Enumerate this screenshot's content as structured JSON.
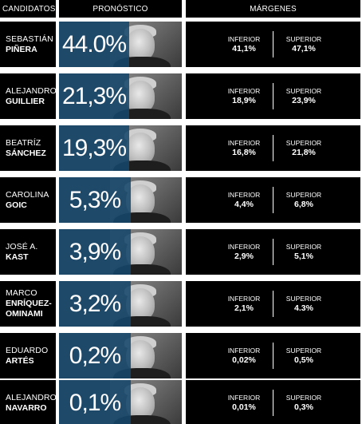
{
  "headers": {
    "candidates": "CANDIDATOS",
    "forecast": "PRONÓSTICO",
    "margins": "MÁRGENES"
  },
  "labels": {
    "lower": "INFERIOR",
    "upper": "SUPERIOR"
  },
  "colors": {
    "forecast_fill": "#17476b",
    "panel": "#000000"
  },
  "candidates": [
    {
      "first": "SEBASTIÁN",
      "last": "PIÑERA",
      "forecast": "44.0%",
      "lower": "41,1%",
      "upper": "47,1%",
      "icon": "candidate-photo"
    },
    {
      "first": "ALEJANDRO",
      "last": "GUILLIER",
      "forecast": "21,3%",
      "lower": "18,9%",
      "upper": "23,9%",
      "icon": "candidate-photo"
    },
    {
      "first": "BEATRÍZ",
      "last": "SÁNCHEZ",
      "forecast": "19,3%",
      "lower": "16,8%",
      "upper": "21,8%",
      "icon": "candidate-photo"
    },
    {
      "first": "CAROLINA",
      "last": "GOIC",
      "forecast": "5,3%",
      "lower": "4,4%",
      "upper": "6,8%",
      "icon": "candidate-photo"
    },
    {
      "first": "JOSÉ A.",
      "last": "KAST",
      "forecast": "3,9%",
      "lower": "2,9%",
      "upper": "5,1%",
      "icon": "candidate-photo"
    },
    {
      "first": "MARCO",
      "last": "ENRÍQUEZ-",
      "last2": "OMINAMI",
      "forecast": "3,2%",
      "lower": "2,1%",
      "upper": "4.3%",
      "icon": "candidate-photo"
    },
    {
      "first": "EDUARDO",
      "last": "ARTÉS",
      "forecast": "0,2%",
      "lower": "0,02%",
      "upper": "0,5%",
      "icon": "candidate-photo"
    },
    {
      "first": "ALEJANDRO",
      "last": "NAVARRO",
      "forecast": "0,1%",
      "lower": "0,01%",
      "upper": "0,3%",
      "icon": "candidate-photo"
    }
  ]
}
